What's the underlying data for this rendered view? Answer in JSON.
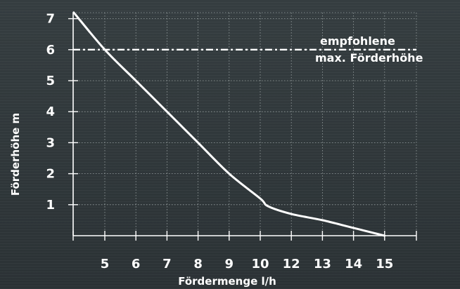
{
  "chart_data": {
    "type": "line",
    "xlabel": "Fördermenge l/h",
    "ylabel": "Förderhöhe m",
    "x_ticks": [
      "5",
      "6",
      "7",
      "8",
      "9",
      "10",
      "12",
      "13",
      "14",
      "15"
    ],
    "y_ticks": [
      "1",
      "2",
      "3",
      "4",
      "5",
      "6",
      "7"
    ],
    "ylim": [
      0,
      7.3
    ],
    "grid": true,
    "series": [
      {
        "x": [
          "4",
          "5",
          "6",
          "7",
          "8",
          "9",
          "10",
          "10.5",
          "12",
          "13",
          "14",
          "15"
        ],
        "values": [
          7.2,
          6.0,
          5.0,
          4.0,
          3.0,
          2.0,
          1.2,
          0.95,
          0.7,
          0.5,
          0.25,
          0.0
        ]
      }
    ],
    "reference_line": {
      "y": 6,
      "label_line1": "empfohlene",
      "label_line2": "max. Förderhöhe"
    }
  },
  "colors": {
    "background": "#2f3638",
    "line": "#ffffff",
    "grid": "#a8b0b2",
    "text": "#ffffff"
  }
}
